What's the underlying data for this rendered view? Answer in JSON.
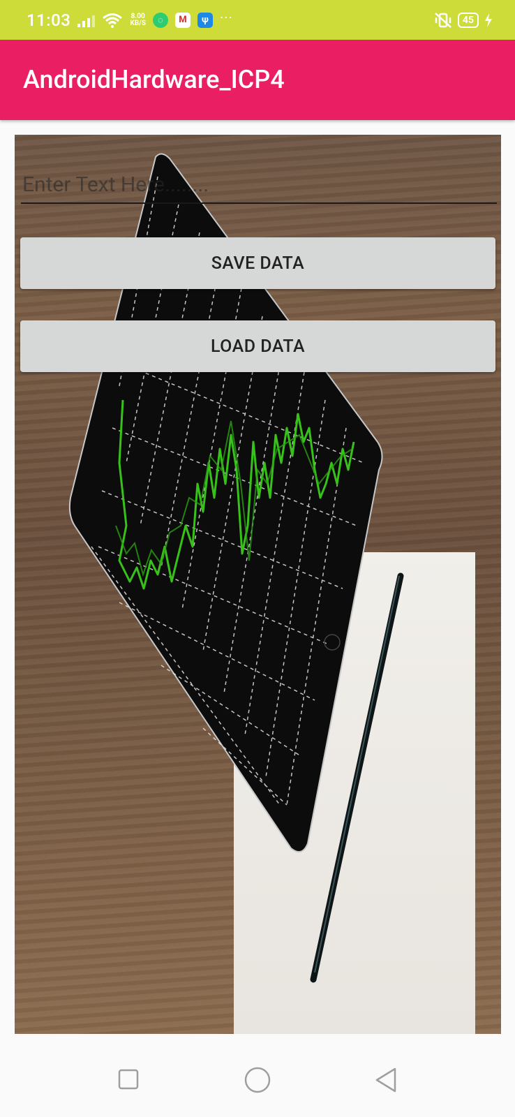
{
  "status_bar": {
    "time": "11:03",
    "net_speed_value": "8.00",
    "net_speed_unit": "KB/S",
    "battery_level": "45",
    "more_indicator": "···",
    "icons": [
      "signal-icon",
      "wifi-icon",
      "chat-app-icon",
      "gmail-icon",
      "usb-icon",
      "vibrate-icon",
      "battery-icon",
      "charging-icon"
    ],
    "color": "#cddc39"
  },
  "app_bar": {
    "title": "AndroidHardware_ICP4",
    "color": "#e91e63"
  },
  "form": {
    "text_input_placeholder": "Enter Text Here........",
    "text_input_value": "",
    "save_button_label": "SAVE DATA",
    "load_button_label": "LOAD DATA"
  },
  "background_image": {
    "subject": "tablet-with-stock-chart-on-wooden-desk-with-paper-and-pen"
  },
  "nav_bar": {
    "buttons": [
      "recents-icon",
      "home-icon",
      "back-icon"
    ]
  }
}
